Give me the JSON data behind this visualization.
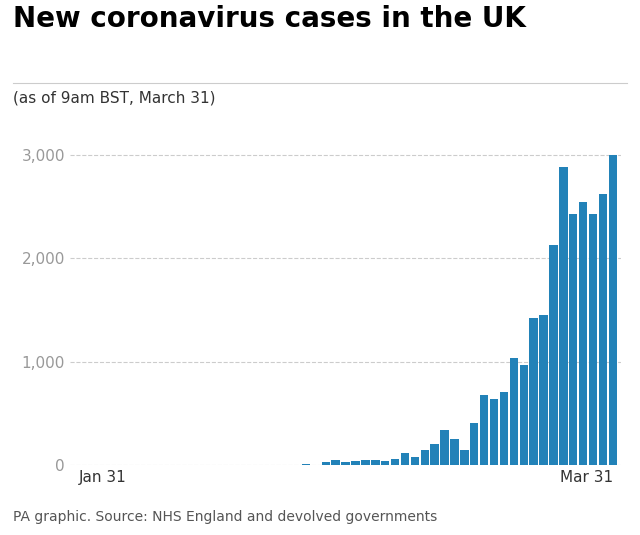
{
  "title": "New coronavirus cases in the UK",
  "subtitle": "(as of 9am BST, March 31)",
  "source": "PA graphic. Source: NHS England and devolved governments",
  "bar_color": "#2282B8",
  "background_color": "#ffffff",
  "ylim": [
    0,
    3100
  ],
  "yticks": [
    0,
    1000,
    2000,
    3000
  ],
  "xlabel_left": "Jan 31",
  "xlabel_right": "Mar 31",
  "daily_values": [
    2,
    1,
    1,
    0,
    0,
    2,
    3,
    0,
    0,
    0,
    0,
    0,
    1,
    0,
    0,
    0,
    4,
    3,
    3,
    8,
    2,
    3,
    6,
    12,
    8,
    29,
    48,
    36,
    46,
    51,
    53,
    47,
    63,
    116,
    83,
    152,
    208,
    342,
    251,
    152,
    407,
    676,
    643,
    714,
    1035,
    967,
    1427,
    1452,
    2129,
    2885,
    2433,
    2546,
    2433,
    2619,
    3000
  ],
  "title_fontsize": 20,
  "subtitle_fontsize": 11,
  "source_fontsize": 10,
  "tick_fontsize": 11,
  "tick_color": "#999999",
  "grid_color": "#cccccc",
  "title_line_color": "#cccccc"
}
